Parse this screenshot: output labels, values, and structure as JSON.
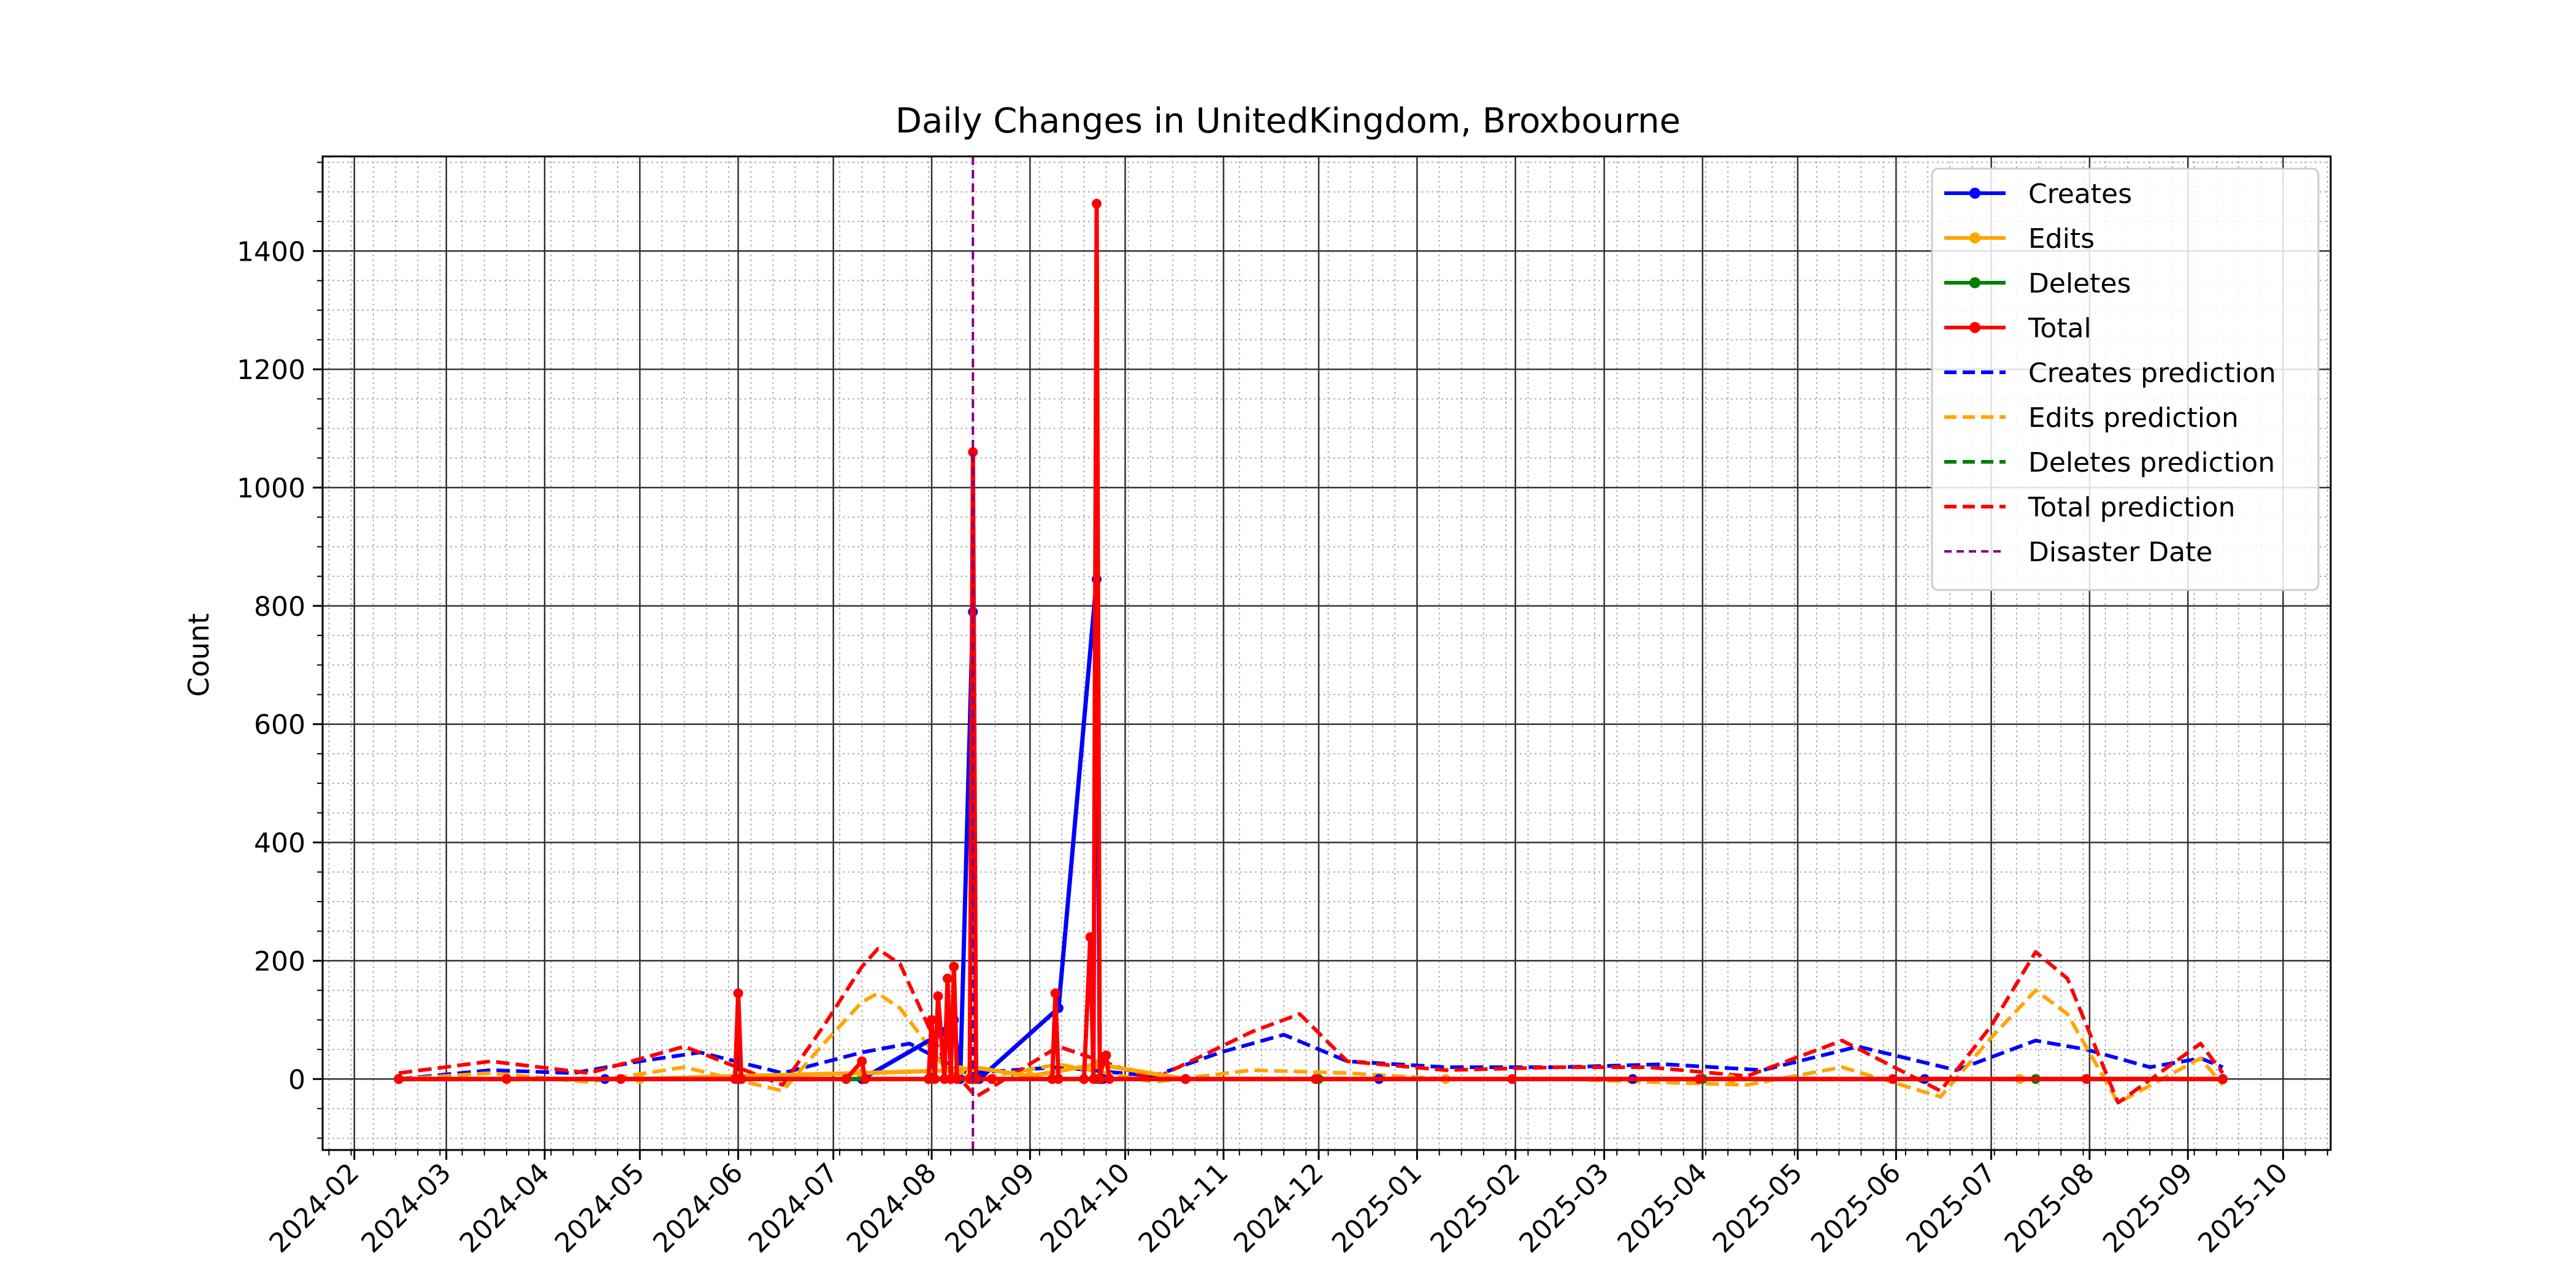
{
  "chart_data": {
    "type": "line",
    "title": "Daily Changes in UnitedKingdom, Broxbourne",
    "xlabel": "",
    "ylabel": "Count",
    "x_type": "date",
    "xlim": [
      "2024-01-22",
      "2025-10-16"
    ],
    "ylim": [
      -120,
      1560
    ],
    "x_ticks": [
      "2024-02",
      "2024-03",
      "2024-04",
      "2024-05",
      "2024-06",
      "2024-07",
      "2024-08",
      "2024-09",
      "2024-10",
      "2024-11",
      "2024-12",
      "2025-01",
      "2025-02",
      "2025-03",
      "2025-04",
      "2025-05",
      "2025-06",
      "2025-07",
      "2025-08",
      "2025-09",
      "2025-10"
    ],
    "y_ticks": [
      0,
      200,
      400,
      600,
      800,
      1000,
      1200,
      1400
    ],
    "grid": true,
    "minor_grid": true,
    "legend_position": "top-right",
    "series": [
      {
        "name": "Creates",
        "color": "#0000ff",
        "style": "solid-marker",
        "x": [
          "2024-02-15",
          "2024-04-20",
          "2024-06-01",
          "2024-07-10",
          "2024-08-05",
          "2024-08-08",
          "2024-08-10",
          "2024-08-14",
          "2024-08-15",
          "2024-08-16",
          "2024-09-10",
          "2024-09-22",
          "2024-09-23",
          "2024-09-24",
          "2024-10-20",
          "2024-12-20",
          "2025-03-10",
          "2025-06-10",
          "2025-09-12"
        ],
        "y": [
          0,
          0,
          0,
          0,
          80,
          100,
          0,
          790,
          0,
          0,
          120,
          845,
          0,
          0,
          0,
          0,
          0,
          0,
          0
        ]
      },
      {
        "name": "Edits",
        "color": "#ffa500",
        "style": "solid-marker",
        "x": [
          "2024-02-15",
          "2024-05-01",
          "2024-06-01",
          "2024-07-10",
          "2024-08-10",
          "2024-08-14",
          "2024-09-01",
          "2024-09-22",
          "2024-10-20",
          "2025-01-10",
          "2025-04-10",
          "2025-07-10",
          "2025-09-12"
        ],
        "y": [
          0,
          0,
          5,
          10,
          15,
          20,
          5,
          25,
          0,
          0,
          0,
          0,
          0
        ]
      },
      {
        "name": "Deletes",
        "color": "#008000",
        "style": "solid-marker",
        "x": [
          "2024-02-15",
          "2024-06-01",
          "2024-08-14",
          "2024-09-22",
          "2024-12-01",
          "2025-04-01",
          "2025-07-15",
          "2025-09-12"
        ],
        "y": [
          0,
          0,
          0,
          0,
          0,
          0,
          0,
          0
        ]
      },
      {
        "name": "Total",
        "color": "#ff0000",
        "style": "solid-marker",
        "x": [
          "2024-02-15",
          "2024-03-20",
          "2024-04-25",
          "2024-05-31",
          "2024-06-01",
          "2024-06-02",
          "2024-07-05",
          "2024-07-10",
          "2024-07-11",
          "2024-07-31",
          "2024-08-01",
          "2024-08-02",
          "2024-08-03",
          "2024-08-05",
          "2024-08-06",
          "2024-08-07",
          "2024-08-08",
          "2024-08-09",
          "2024-08-13",
          "2024-08-14",
          "2024-08-15",
          "2024-08-20",
          "2024-09-08",
          "2024-09-09",
          "2024-09-10",
          "2024-09-18",
          "2024-09-20",
          "2024-09-21",
          "2024-09-22",
          "2024-09-23",
          "2024-09-24",
          "2024-09-25",
          "2024-09-26",
          "2024-10-20",
          "2024-11-30",
          "2025-01-31",
          "2025-03-31",
          "2025-05-31",
          "2025-07-31",
          "2025-09-12"
        ],
        "y": [
          0,
          0,
          0,
          0,
          145,
          0,
          0,
          30,
          0,
          0,
          100,
          0,
          140,
          0,
          170,
          0,
          190,
          0,
          0,
          1060,
          0,
          0,
          0,
          145,
          0,
          0,
          240,
          0,
          1480,
          0,
          30,
          40,
          0,
          0,
          0,
          0,
          0,
          0,
          0,
          0
        ]
      },
      {
        "name": "Creates prediction",
        "color": "#0000ff",
        "style": "dashed",
        "x": [
          "2024-02-15",
          "2024-03-15",
          "2024-04-10",
          "2024-05-01",
          "2024-05-20",
          "2024-06-15",
          "2024-07-10",
          "2024-07-25",
          "2024-08-12",
          "2024-09-10",
          "2024-10-10",
          "2024-10-31",
          "2024-11-20",
          "2024-12-10",
          "2025-01-10",
          "2025-02-15",
          "2025-03-20",
          "2025-04-20",
          "2025-05-20",
          "2025-06-20",
          "2025-07-15",
          "2025-07-31",
          "2025-08-20",
          "2025-09-05",
          "2025-09-12"
        ],
        "y": [
          0,
          15,
          10,
          30,
          45,
          10,
          45,
          60,
          10,
          20,
          5,
          45,
          75,
          30,
          20,
          20,
          25,
          15,
          55,
          15,
          65,
          50,
          20,
          35,
          20
        ]
      },
      {
        "name": "Edits prediction",
        "color": "#ffa500",
        "style": "dashed",
        "x": [
          "2024-02-15",
          "2024-03-15",
          "2024-04-15",
          "2024-05-15",
          "2024-06-15",
          "2024-06-28",
          "2024-07-10",
          "2024-07-15",
          "2024-07-22",
          "2024-08-05",
          "2024-08-15",
          "2024-09-10",
          "2024-10-10",
          "2024-11-10",
          "2024-12-10",
          "2025-01-10",
          "2025-02-15",
          "2025-03-15",
          "2025-04-15",
          "2025-05-15",
          "2025-06-15",
          "2025-07-01",
          "2025-07-15",
          "2025-07-25",
          "2025-08-10",
          "2025-09-05",
          "2025-09-12"
        ],
        "y": [
          0,
          10,
          -5,
          20,
          -20,
          60,
          130,
          145,
          120,
          20,
          0,
          25,
          -5,
          15,
          10,
          0,
          0,
          -5,
          -10,
          20,
          -30,
          70,
          150,
          110,
          -40,
          35,
          -10
        ]
      },
      {
        "name": "Deletes prediction",
        "color": "#008000",
        "style": "dashed",
        "x": [
          "2024-02-15",
          "2024-06-15",
          "2024-10-15",
          "2025-02-15",
          "2025-06-15",
          "2025-09-12"
        ],
        "y": [
          0,
          0,
          0,
          0,
          0,
          0
        ]
      },
      {
        "name": "Total prediction",
        "color": "#ff0000",
        "style": "dashed",
        "x": [
          "2024-02-15",
          "2024-03-15",
          "2024-04-15",
          "2024-05-15",
          "2024-06-15",
          "2024-06-28",
          "2024-07-10",
          "2024-07-15",
          "2024-07-22",
          "2024-08-05",
          "2024-08-15",
          "2024-09-10",
          "2024-10-10",
          "2024-11-10",
          "2024-11-25",
          "2024-12-10",
          "2025-01-10",
          "2025-02-15",
          "2025-03-15",
          "2025-04-15",
          "2025-05-15",
          "2025-06-15",
          "2025-07-01",
          "2025-07-15",
          "2025-07-25",
          "2025-08-10",
          "2025-09-05",
          "2025-09-12"
        ],
        "y": [
          10,
          30,
          10,
          55,
          -10,
          90,
          190,
          220,
          195,
          30,
          -30,
          55,
          0,
          80,
          110,
          30,
          15,
          20,
          20,
          5,
          65,
          -20,
          90,
          215,
          170,
          -40,
          60,
          10
        ]
      }
    ],
    "annotations": [
      {
        "name": "Disaster Date",
        "type": "vline",
        "x": "2024-08-14",
        "color": "#800080",
        "style": "dashed"
      }
    ]
  }
}
